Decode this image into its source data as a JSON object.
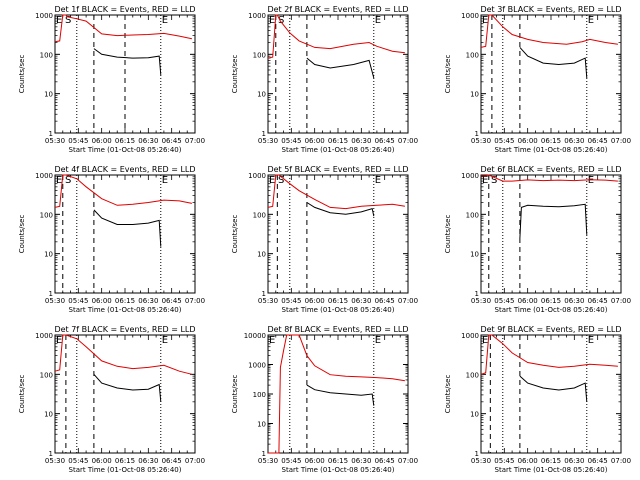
{
  "chart_data": {
    "type": "line",
    "xticks": [
      "05:30",
      "05:45",
      "06:00",
      "06:15",
      "06:30",
      "06:45",
      "07:00"
    ],
    "xlim_minutes": [
      0,
      90
    ],
    "ylim": [
      1,
      1000
    ],
    "ylabel": "Counts/sec",
    "xlabel": "Start Time (01-Oct-08 05:26:40)",
    "y_scale": "log",
    "markers": {
      "left": "E",
      "s": "S",
      "right": "E"
    },
    "panels": [
      {
        "title": "Det 1f BLACK = Events, RED = LLD",
        "ymax": 1000,
        "yticks": [
          "1",
          "10",
          "100",
          "1000"
        ],
        "dashes": [
          25,
          45
        ],
        "dots": [
          14,
          68
        ],
        "E_right": 68,
        "S": true,
        "red": [
          [
            0,
            210
          ],
          [
            3,
            220
          ],
          [
            5,
            1000
          ],
          [
            7,
            1000
          ],
          [
            8,
            900
          ],
          [
            14,
            800
          ],
          [
            20,
            700
          ],
          [
            30,
            330
          ],
          [
            40,
            300
          ],
          [
            50,
            310
          ],
          [
            60,
            320
          ],
          [
            70,
            340
          ],
          [
            80,
            290
          ],
          [
            88,
            250
          ]
        ],
        "black": [
          [
            25,
            140
          ],
          [
            30,
            100
          ],
          [
            40,
            85
          ],
          [
            50,
            80
          ],
          [
            60,
            82
          ],
          [
            67,
            90
          ],
          [
            68,
            30
          ]
        ]
      },
      {
        "title": "Det 2f BLACK = Events, RED = LLD",
        "ymax": 1000,
        "yticks": [
          "1",
          "10",
          "100",
          "1000"
        ],
        "dashes": [
          5,
          25
        ],
        "dots": [
          14,
          68
        ],
        "E_right": 68,
        "S": true,
        "red": [
          [
            0,
            80
          ],
          [
            3,
            85
          ],
          [
            5,
            1000
          ],
          [
            6,
            1000
          ],
          [
            8,
            700
          ],
          [
            14,
            350
          ],
          [
            20,
            220
          ],
          [
            30,
            150
          ],
          [
            40,
            140
          ],
          [
            55,
            180
          ],
          [
            65,
            200
          ],
          [
            70,
            160
          ],
          [
            80,
            120
          ],
          [
            88,
            110
          ]
        ],
        "black": [
          [
            25,
            80
          ],
          [
            30,
            55
          ],
          [
            40,
            45
          ],
          [
            55,
            55
          ],
          [
            65,
            70
          ],
          [
            68,
            25
          ]
        ]
      },
      {
        "title": "Det 3f BLACK = Events, RED = LLD",
        "ymax": 1000,
        "yticks": [
          "1",
          "10",
          "100",
          "1000"
        ],
        "dashes": [
          7,
          25
        ],
        "dots": [
          14,
          68
        ],
        "E_right": 68,
        "S": false,
        "red": [
          [
            0,
            150
          ],
          [
            3,
            160
          ],
          [
            5,
            1000
          ],
          [
            7,
            1000
          ],
          [
            14,
            500
          ],
          [
            20,
            320
          ],
          [
            30,
            240
          ],
          [
            40,
            200
          ],
          [
            55,
            180
          ],
          [
            65,
            210
          ],
          [
            70,
            240
          ],
          [
            80,
            200
          ],
          [
            88,
            180
          ]
        ],
        "black": [
          [
            25,
            150
          ],
          [
            30,
            90
          ],
          [
            40,
            60
          ],
          [
            50,
            55
          ],
          [
            60,
            60
          ],
          [
            67,
            80
          ],
          [
            68,
            25
          ]
        ]
      },
      {
        "title": "Det 4f BLACK = Events, RED = LLD",
        "ymax": 1000,
        "yticks": [
          "1",
          "10",
          "100",
          "1000"
        ],
        "dashes": [
          5,
          25
        ],
        "dots": [
          14,
          68
        ],
        "E_right": 68,
        "S": true,
        "red": [
          [
            0,
            150
          ],
          [
            3,
            160
          ],
          [
            5,
            1000
          ],
          [
            7,
            1000
          ],
          [
            14,
            800
          ],
          [
            20,
            500
          ],
          [
            30,
            250
          ],
          [
            40,
            170
          ],
          [
            50,
            180
          ],
          [
            60,
            200
          ],
          [
            70,
            230
          ],
          [
            80,
            220
          ],
          [
            88,
            190
          ]
        ],
        "black": [
          [
            25,
            130
          ],
          [
            30,
            80
          ],
          [
            40,
            55
          ],
          [
            50,
            55
          ],
          [
            60,
            60
          ],
          [
            67,
            70
          ],
          [
            68,
            15
          ]
        ]
      },
      {
        "title": "Det 5f BLACK = Events, RED = LLD",
        "ymax": 1000,
        "yticks": [
          "1",
          "10",
          "100",
          "1000"
        ],
        "dashes": [
          6,
          25
        ],
        "dots": [
          14,
          68
        ],
        "E_right": 68,
        "S": true,
        "red": [
          [
            0,
            150
          ],
          [
            3,
            160
          ],
          [
            5,
            1000
          ],
          [
            7,
            1000
          ],
          [
            14,
            600
          ],
          [
            20,
            400
          ],
          [
            30,
            240
          ],
          [
            40,
            150
          ],
          [
            50,
            140
          ],
          [
            60,
            160
          ],
          [
            70,
            170
          ],
          [
            80,
            180
          ],
          [
            88,
            160
          ]
        ],
        "black": [
          [
            25,
            200
          ],
          [
            30,
            150
          ],
          [
            40,
            110
          ],
          [
            50,
            100
          ],
          [
            60,
            115
          ],
          [
            67,
            140
          ],
          [
            68,
            90
          ]
        ]
      },
      {
        "title": "Det 6f BLACK = Events, RED = LLD",
        "ymax": 1000,
        "yticks": [
          "1",
          "10",
          "100",
          "1000"
        ],
        "dashes": [
          5,
          25
        ],
        "dots": [
          14,
          68
        ],
        "E_right": 68,
        "S": true,
        "red": [
          [
            0,
            950
          ],
          [
            3,
            950
          ],
          [
            5,
            1000
          ],
          [
            14,
            700
          ],
          [
            20,
            700
          ],
          [
            30,
            750
          ],
          [
            40,
            720
          ],
          [
            50,
            740
          ],
          [
            60,
            720
          ],
          [
            70,
            760
          ],
          [
            80,
            740
          ],
          [
            88,
            700
          ]
        ],
        "black": [
          [
            25,
            25
          ],
          [
            26,
            150
          ],
          [
            30,
            170
          ],
          [
            40,
            160
          ],
          [
            50,
            155
          ],
          [
            60,
            165
          ],
          [
            67,
            180
          ],
          [
            68,
            30
          ]
        ]
      },
      {
        "title": "Det 7f BLACK = Events, RED = LLD",
        "ymax": 1000,
        "yticks": [
          "1",
          "10",
          "100",
          "1000"
        ],
        "dashes": [
          7,
          25
        ],
        "dots": [
          14,
          68
        ],
        "E_right": 68,
        "S": false,
        "red": [
          [
            0,
            120
          ],
          [
            3,
            130
          ],
          [
            5,
            1000
          ],
          [
            7,
            1000
          ],
          [
            14,
            800
          ],
          [
            20,
            500
          ],
          [
            30,
            220
          ],
          [
            40,
            160
          ],
          [
            50,
            140
          ],
          [
            60,
            150
          ],
          [
            70,
            170
          ],
          [
            80,
            120
          ],
          [
            88,
            100
          ]
        ],
        "black": [
          [
            25,
            100
          ],
          [
            30,
            60
          ],
          [
            40,
            45
          ],
          [
            50,
            40
          ],
          [
            60,
            42
          ],
          [
            67,
            55
          ],
          [
            68,
            20
          ]
        ]
      },
      {
        "title": "Det 8f BLACK = Events, RED = LLD",
        "ymax": 10000,
        "yticks": [
          "1",
          "10",
          "100",
          "1000",
          "10000"
        ],
        "dashes": [
          25
        ],
        "dots": [
          14,
          68
        ],
        "E_right": 68,
        "S": false,
        "red": [
          [
            0,
            1
          ],
          [
            7,
            1
          ],
          [
            8,
            800
          ],
          [
            10,
            3000
          ],
          [
            12,
            10000
          ],
          [
            20,
            10000
          ],
          [
            25,
            2000
          ],
          [
            30,
            900
          ],
          [
            40,
            450
          ],
          [
            50,
            400
          ],
          [
            60,
            380
          ],
          [
            70,
            360
          ],
          [
            80,
            330
          ],
          [
            88,
            280
          ]
        ],
        "black": [
          [
            25,
            200
          ],
          [
            30,
            140
          ],
          [
            40,
            110
          ],
          [
            50,
            100
          ],
          [
            60,
            90
          ],
          [
            67,
            100
          ],
          [
            68,
            40
          ]
        ]
      },
      {
        "title": "Det 9f BLACK = Events, RED = LLD",
        "ymax": 1000,
        "yticks": [
          "1",
          "10",
          "100",
          "1000"
        ],
        "dashes": [
          6,
          25
        ],
        "dots": [
          14,
          68
        ],
        "E_right": 68,
        "S": false,
        "red": [
          [
            0,
            100
          ],
          [
            3,
            110
          ],
          [
            5,
            1000
          ],
          [
            7,
            1000
          ],
          [
            14,
            600
          ],
          [
            20,
            350
          ],
          [
            30,
            200
          ],
          [
            40,
            170
          ],
          [
            50,
            150
          ],
          [
            60,
            160
          ],
          [
            70,
            180
          ],
          [
            80,
            170
          ],
          [
            88,
            160
          ]
        ],
        "black": [
          [
            25,
            90
          ],
          [
            30,
            60
          ],
          [
            40,
            45
          ],
          [
            50,
            40
          ],
          [
            60,
            45
          ],
          [
            67,
            60
          ],
          [
            68,
            20
          ]
        ]
      }
    ]
  }
}
